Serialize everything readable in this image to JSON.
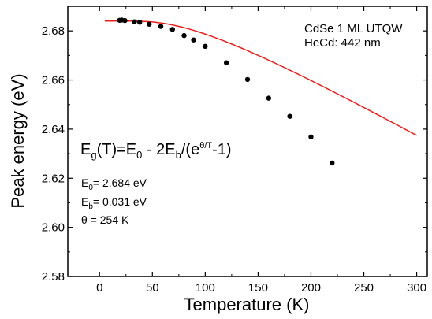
{
  "chart_data": {
    "type": "scatter",
    "xlabel": "Temperature (K)",
    "ylabel": "Peak energy (eV)",
    "xlim": [
      -30,
      310
    ],
    "ylim": [
      2.58,
      2.69
    ],
    "xticks": [
      0,
      50,
      100,
      150,
      200,
      250,
      300
    ],
    "yticks": [
      2.58,
      2.6,
      2.62,
      2.64,
      2.66,
      2.68
    ],
    "xtick_labels": [
      "0",
      "50",
      "100",
      "150",
      "200",
      "250",
      "300"
    ],
    "ytick_labels": [
      "2.58",
      "2.60",
      "2.62",
      "2.64",
      "2.66",
      "2.68"
    ],
    "grid": false,
    "annotations": {
      "sample": "CdSe 1 ML UTQW",
      "excitation": "HeCd: 442 nm"
    },
    "formula": {
      "lhs_E": "E",
      "lhs_sub": "g",
      "lhs_arg": "(T)=E",
      "e0_sub": "0",
      "minus": " - 2E",
      "eb_sub": "b",
      "denom_open": "/(e",
      "exp_sup": "θ/T",
      "denom_close": "-1)"
    },
    "params": [
      {
        "sym": "E",
        "sub": "0",
        "text": "= 2.684 eV"
      },
      {
        "sym": "E",
        "sub": "b",
        "text": "= 0.031 eV"
      },
      {
        "sym": "θ",
        "sub": "",
        "text": " = 254 K"
      }
    ],
    "fit": {
      "E0": 2.684,
      "Eb": 0.031,
      "theta": 254,
      "x_start": 5,
      "x_end": 300,
      "color": "#e8201c"
    },
    "series": [
      {
        "marker_color": "#000000",
        "x": [
          19,
          21,
          24,
          33,
          38,
          47,
          58,
          69,
          80,
          89,
          100,
          120,
          140,
          160,
          180,
          200,
          220
        ],
        "y": [
          2.6843,
          2.6844,
          2.6842,
          2.6837,
          2.6835,
          2.6827,
          2.6818,
          2.6806,
          2.6781,
          2.6763,
          2.6737,
          2.667,
          2.6602,
          2.6526,
          2.6452,
          2.6368,
          2.6262
        ]
      }
    ]
  }
}
